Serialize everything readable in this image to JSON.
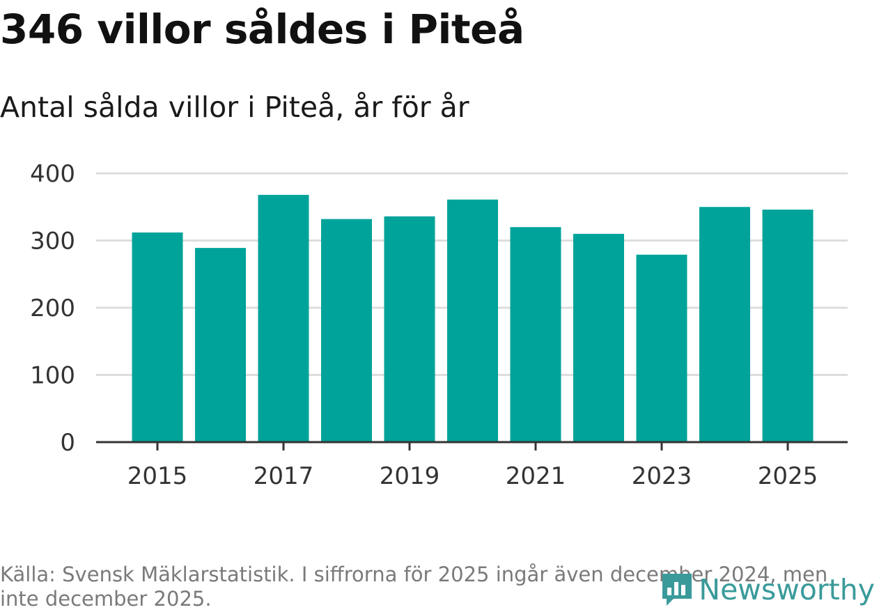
{
  "header": {
    "title": "346 villor såldes i Piteå",
    "subtitle": "Antal sålda villor i Piteå, år för år"
  },
  "chart_data": {
    "type": "bar",
    "title": "346 villor såldes i Piteå",
    "subtitle": "Antal sålda villor i Piteå, år för år",
    "categories": [
      "2015",
      "2016",
      "2017",
      "2018",
      "2019",
      "2020",
      "2021",
      "2022",
      "2023",
      "2024",
      "2025"
    ],
    "values": [
      312,
      289,
      368,
      332,
      336,
      361,
      320,
      310,
      279,
      350,
      346
    ],
    "x_tick_labels": [
      "2015",
      "2017",
      "2019",
      "2021",
      "2023",
      "2025"
    ],
    "y_ticks": [
      0,
      100,
      200,
      300,
      400
    ],
    "ylim": [
      0,
      400
    ],
    "xlabel": "",
    "ylabel": "",
    "grid": true,
    "bar_color": "#00a39a"
  },
  "footer": {
    "source": "Källa: Svensk Mäklarstatistik. I siffrorna för 2025 ingår även december 2024, men inte december 2025."
  },
  "brand": {
    "name": "Newsworthy",
    "icon": "newsworthy-logo-icon",
    "color": "#3a9a9a"
  }
}
